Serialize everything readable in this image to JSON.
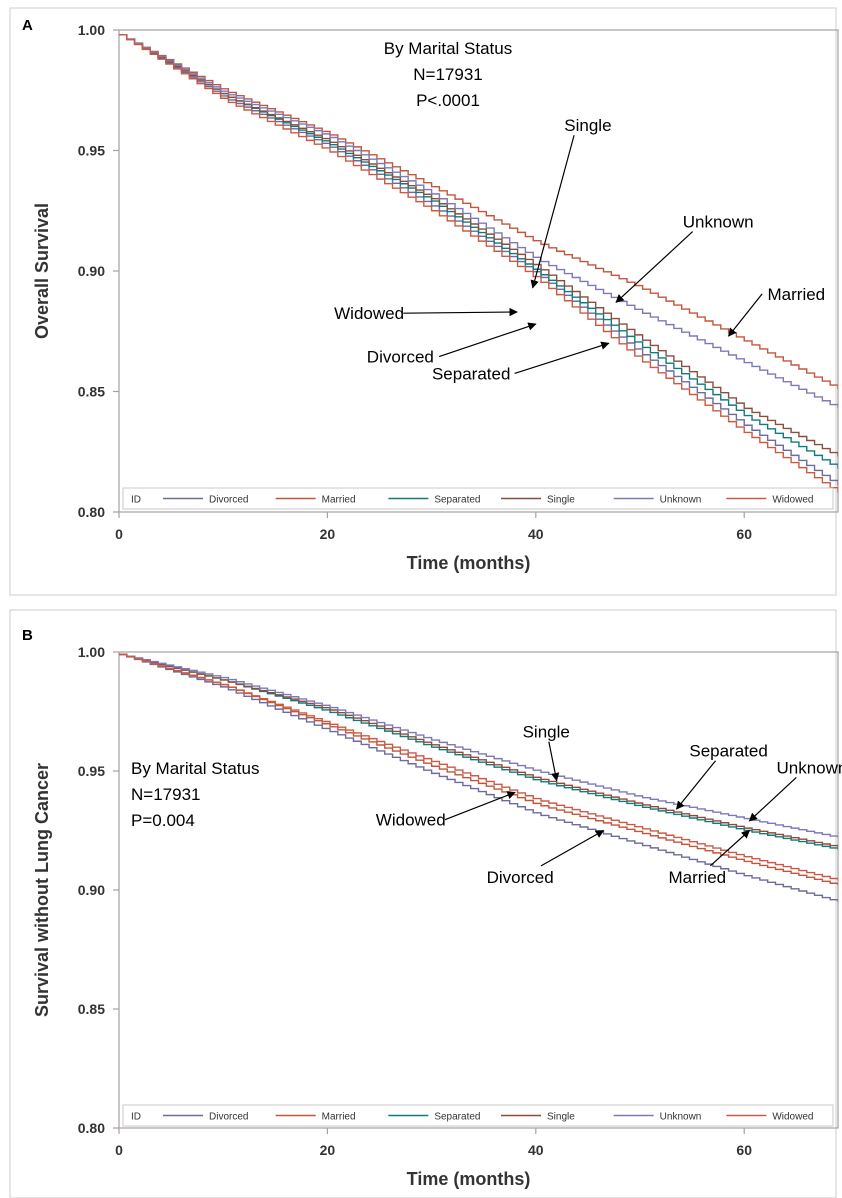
{
  "colors": {
    "Divorced": "#6b6b9c",
    "Married": "#c4553d",
    "Separated": "#127a7d",
    "Single": "#8a4f3c",
    "Unknown": "#7d79b6",
    "Widowed": "#cb5a45",
    "axis": "#a8a0a0",
    "panel_border": "#cccccc"
  },
  "chart_data": [
    {
      "type": "line",
      "panel_label": "A",
      "ylabel": "Overall Survival",
      "xlabel": "Time (months)",
      "xlim": [
        0,
        69
      ],
      "ylim": [
        0.8,
        1.0
      ],
      "x_ticks": [
        0,
        20,
        40,
        60
      ],
      "y_ticks": [
        0.8,
        0.85,
        0.9,
        0.95,
        1.0
      ],
      "x_tick_labels": [
        "0",
        "20",
        "40",
        "60"
      ],
      "y_tick_labels": [
        "0.80",
        "0.85",
        "0.90",
        "0.95",
        "1.00"
      ],
      "annotation_lines": [
        "By Marital Status",
        "N=17931",
        "P<.0001"
      ],
      "legend": {
        "title": "ID",
        "position": "bottom",
        "entries": [
          "Divorced",
          "Married",
          "Separated",
          "Single",
          "Unknown",
          "Widowed"
        ]
      },
      "series": [
        {
          "name": "Divorced",
          "x": [
            0,
            10,
            20,
            30,
            40,
            50,
            60,
            69
          ],
          "y": [
            0.998,
            0.972,
            0.952,
            0.927,
            0.899,
            0.866,
            0.836,
            0.811
          ]
        },
        {
          "name": "Married",
          "x": [
            0,
            10,
            20,
            30,
            40,
            50,
            60,
            69
          ],
          "y": [
            0.998,
            0.975,
            0.957,
            0.935,
            0.912,
            0.893,
            0.871,
            0.851
          ]
        },
        {
          "name": "Separated",
          "x": [
            0,
            10,
            20,
            30,
            40,
            50,
            60,
            69
          ],
          "y": [
            0.998,
            0.973,
            0.953,
            0.929,
            0.9,
            0.869,
            0.84,
            0.818
          ]
        },
        {
          "name": "Single",
          "x": [
            0,
            10,
            20,
            30,
            40,
            50,
            60,
            69
          ],
          "y": [
            0.998,
            0.973,
            0.954,
            0.93,
            0.902,
            0.872,
            0.843,
            0.823
          ]
        },
        {
          "name": "Unknown",
          "x": [
            0,
            10,
            20,
            30,
            40,
            50,
            60,
            69
          ],
          "y": [
            0.998,
            0.974,
            0.956,
            0.932,
            0.905,
            0.883,
            0.862,
            0.843
          ]
        },
        {
          "name": "Widowed",
          "x": [
            0,
            10,
            20,
            30,
            40,
            50,
            60,
            69
          ],
          "y": [
            0.998,
            0.971,
            0.95,
            0.925,
            0.897,
            0.863,
            0.833,
            0.808
          ]
        }
      ],
      "callouts": [
        {
          "label": "Single",
          "text_at": [
            45.0,
            0.958
          ],
          "points_to": [
            39.7,
            0.893
          ]
        },
        {
          "label": "Unknown",
          "text_at": [
            57.5,
            0.918
          ],
          "points_to": [
            47.7,
            0.887
          ]
        },
        {
          "label": "Married",
          "text_at": [
            65.0,
            0.888
          ],
          "points_to": [
            58.5,
            0.873
          ]
        },
        {
          "label": "Widowed",
          "text_at": [
            24.0,
            0.88
          ],
          "points_to": [
            38.2,
            0.883
          ]
        },
        {
          "label": "Divorced",
          "text_at": [
            27.0,
            0.862
          ],
          "points_to": [
            40.0,
            0.878
          ]
        },
        {
          "label": "Separated",
          "text_at": [
            33.8,
            0.855
          ],
          "points_to": [
            47.0,
            0.87
          ]
        }
      ]
    },
    {
      "type": "line",
      "panel_label": "B",
      "ylabel": "Survival without Lung Cancer",
      "xlabel": "Time (months)",
      "xlim": [
        0,
        69
      ],
      "ylim": [
        0.8,
        1.0
      ],
      "x_ticks": [
        0,
        20,
        40,
        60
      ],
      "y_ticks": [
        0.8,
        0.85,
        0.9,
        0.95,
        1.0
      ],
      "x_tick_labels": [
        "0",
        "20",
        "40",
        "60"
      ],
      "y_tick_labels": [
        "0.80",
        "0.85",
        "0.90",
        "0.95",
        "1.00"
      ],
      "annotation_lines": [
        "By Marital Status",
        "N=17931",
        "P=0.004"
      ],
      "legend": {
        "title": "ID",
        "position": "bottom",
        "entries": [
          "Divorced",
          "Married",
          "Separated",
          "Single",
          "Unknown",
          "Widowed"
        ]
      },
      "series": [
        {
          "name": "Divorced",
          "x": [
            0,
            10,
            20,
            30,
            40,
            50,
            60,
            69
          ],
          "y": [
            0.999,
            0.985,
            0.967,
            0.949,
            0.932,
            0.919,
            0.906,
            0.895
          ]
        },
        {
          "name": "Married",
          "x": [
            0,
            10,
            20,
            30,
            40,
            50,
            60,
            69
          ],
          "y": [
            0.999,
            0.986,
            0.969,
            0.952,
            0.936,
            0.924,
            0.912,
            0.902
          ]
        },
        {
          "name": "Separated",
          "x": [
            0,
            10,
            20,
            30,
            40,
            50,
            60,
            69
          ],
          "y": [
            0.999,
            0.988,
            0.975,
            0.96,
            0.946,
            0.935,
            0.925,
            0.917
          ]
        },
        {
          "name": "Single",
          "x": [
            0,
            10,
            20,
            30,
            40,
            50,
            60,
            69
          ],
          "y": [
            0.999,
            0.988,
            0.976,
            0.961,
            0.947,
            0.936,
            0.926,
            0.918
          ]
        },
        {
          "name": "Unknown",
          "x": [
            0,
            10,
            20,
            30,
            40,
            50,
            60,
            69
          ],
          "y": [
            0.999,
            0.989,
            0.977,
            0.963,
            0.95,
            0.939,
            0.93,
            0.922
          ]
        },
        {
          "name": "Widowed",
          "x": [
            0,
            10,
            20,
            30,
            40,
            50,
            60,
            69
          ],
          "y": [
            0.999,
            0.986,
            0.97,
            0.954,
            0.938,
            0.926,
            0.914,
            0.904
          ]
        }
      ],
      "callouts": [
        {
          "label": "Single",
          "text_at": [
            41.0,
            0.964
          ],
          "points_to": [
            42.0,
            0.946
          ]
        },
        {
          "label": "Separated",
          "text_at": [
            58.5,
            0.956
          ],
          "points_to": [
            53.5,
            0.934
          ]
        },
        {
          "label": "Unknown",
          "text_at": [
            66.5,
            0.949
          ],
          "points_to": [
            60.5,
            0.929
          ]
        },
        {
          "label": "Widowed",
          "text_at": [
            28.0,
            0.927
          ],
          "points_to": [
            38.0,
            0.941
          ]
        },
        {
          "label": "Divorced",
          "text_at": [
            38.5,
            0.903
          ],
          "points_to": [
            46.5,
            0.925
          ]
        },
        {
          "label": "Married",
          "text_at": [
            55.5,
            0.903
          ],
          "points_to": [
            60.5,
            0.925
          ]
        }
      ]
    }
  ]
}
